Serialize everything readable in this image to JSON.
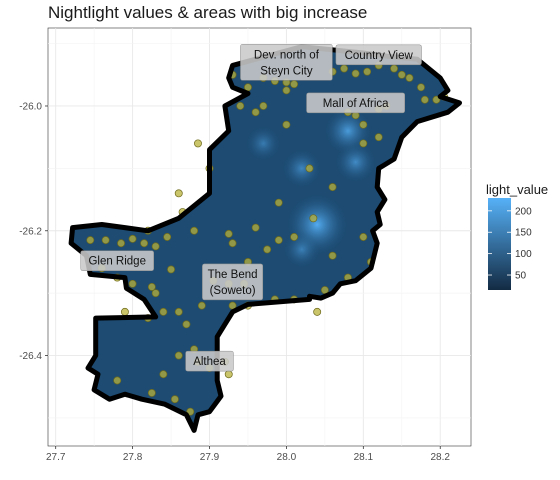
{
  "chart_data": {
    "type": "map",
    "title": "Nightlight values & areas with big increase",
    "xlabel": "",
    "ylabel": "",
    "xlim": [
      27.69,
      28.24
    ],
    "ylim": [
      -26.545,
      -25.875
    ],
    "x_ticks": [
      27.7,
      27.8,
      27.9,
      28.0,
      28.1,
      28.2
    ],
    "y_ticks": [
      -26.0,
      -26.2,
      -26.4
    ],
    "x_tick_labels": [
      "27.7",
      "27.8",
      "27.9",
      "28.0",
      "28.1",
      "28.2"
    ],
    "y_tick_labels": [
      "-26.0",
      "-26.2",
      "-26.4"
    ],
    "grid": true,
    "fill_scale": {
      "name": "light_value",
      "breaks": [
        50,
        100,
        150,
        200
      ],
      "break_labels": [
        "50",
        "100",
        "150",
        "200"
      ],
      "range": [
        15,
        230
      ],
      "low_color": "#132B43",
      "high_color": "#56B1F7"
    },
    "boundary": [
      [
        27.88,
        -26.52
      ],
      [
        27.87,
        -26.495
      ],
      [
        27.842,
        -26.478
      ],
      [
        27.812,
        -26.47
      ],
      [
        27.79,
        -26.462
      ],
      [
        27.77,
        -26.47
      ],
      [
        27.75,
        -26.455
      ],
      [
        27.755,
        -26.43
      ],
      [
        27.742,
        -26.42
      ],
      [
        27.752,
        -26.4
      ],
      [
        27.752,
        -26.34
      ],
      [
        27.83,
        -26.338
      ],
      [
        27.815,
        -26.31
      ],
      [
        27.792,
        -26.292
      ],
      [
        27.79,
        -26.275
      ],
      [
        27.745,
        -26.27
      ],
      [
        27.74,
        -26.24
      ],
      [
        27.72,
        -26.22
      ],
      [
        27.722,
        -26.195
      ],
      [
        27.76,
        -26.19
      ],
      [
        27.82,
        -26.2
      ],
      [
        27.86,
        -26.18
      ],
      [
        27.88,
        -26.16
      ],
      [
        27.9,
        -26.14
      ],
      [
        27.9,
        -26.1
      ],
      [
        27.9,
        -26.07
      ],
      [
        27.925,
        -26.04
      ],
      [
        27.92,
        -26.0
      ],
      [
        27.95,
        -25.98
      ],
      [
        27.93,
        -25.97
      ],
      [
        27.925,
        -25.955
      ],
      [
        27.93,
        -25.935
      ],
      [
        27.975,
        -25.92
      ],
      [
        28.02,
        -25.905
      ],
      [
        28.06,
        -25.91
      ],
      [
        28.1,
        -25.915
      ],
      [
        28.13,
        -25.92
      ],
      [
        28.17,
        -25.925
      ],
      [
        28.185,
        -25.94
      ],
      [
        28.2,
        -25.955
      ],
      [
        28.21,
        -25.975
      ],
      [
        28.2,
        -25.985
      ],
      [
        28.225,
        -25.995
      ],
      [
        28.21,
        -26.01
      ],
      [
        28.17,
        -26.025
      ],
      [
        28.15,
        -26.05
      ],
      [
        28.14,
        -26.085
      ],
      [
        28.12,
        -26.1
      ],
      [
        28.118,
        -26.13
      ],
      [
        28.128,
        -26.15
      ],
      [
        28.118,
        -26.17
      ],
      [
        28.122,
        -26.19
      ],
      [
        28.112,
        -26.2
      ],
      [
        28.118,
        -26.22
      ],
      [
        28.11,
        -26.26
      ],
      [
        28.09,
        -26.28
      ],
      [
        28.07,
        -26.285
      ],
      [
        28.06,
        -26.3
      ],
      [
        28.045,
        -26.308
      ],
      [
        28.03,
        -26.305
      ],
      [
        28.03,
        -26.31
      ],
      [
        27.95,
        -26.318
      ],
      [
        27.93,
        -26.33
      ],
      [
        27.92,
        -26.35
      ],
      [
        27.91,
        -26.37
      ],
      [
        27.91,
        -26.42
      ],
      [
        27.91,
        -26.44
      ],
      [
        27.915,
        -26.465
      ],
      [
        27.9,
        -26.49
      ],
      [
        27.885,
        -26.495
      ]
    ],
    "bright_spots": [
      {
        "x": 28.04,
        "y": -26.19,
        "value": 220
      },
      {
        "x": 28.08,
        "y": -26.04,
        "value": 150
      },
      {
        "x": 28.09,
        "y": -26.09,
        "value": 120
      },
      {
        "x": 28.02,
        "y": -26.1,
        "value": 110
      },
      {
        "x": 28.02,
        "y": -26.23,
        "value": 100
      },
      {
        "x": 27.97,
        "y": -26.06,
        "value": 90
      }
    ],
    "increase_points": [
      [
        27.93,
        -25.95
      ],
      [
        27.95,
        -25.97
      ],
      [
        27.94,
        -26.0
      ],
      [
        27.97,
        -25.955
      ],
      [
        27.985,
        -25.96
      ],
      [
        28.0,
        -25.962
      ],
      [
        28.01,
        -25.965
      ],
      [
        28.0,
        -25.975
      ],
      [
        28.06,
        -25.945
      ],
      [
        28.075,
        -25.94
      ],
      [
        28.09,
        -25.948
      ],
      [
        28.105,
        -25.945
      ],
      [
        28.12,
        -25.935
      ],
      [
        28.14,
        -25.94
      ],
      [
        28.15,
        -25.95
      ],
      [
        28.16,
        -25.955
      ],
      [
        28.175,
        -25.97
      ],
      [
        28.18,
        -25.99
      ],
      [
        28.195,
        -25.99
      ],
      [
        28.205,
        -25.985
      ],
      [
        28.13,
        -26.0
      ],
      [
        28.12,
        -26.005
      ],
      [
        28.08,
        -26.01
      ],
      [
        28.09,
        -26.015
      ],
      [
        28.1,
        -26.03
      ],
      [
        27.96,
        -26.01
      ],
      [
        27.97,
        -26.0
      ],
      [
        28.0,
        -26.03
      ],
      [
        28.1,
        -26.06
      ],
      [
        28.12,
        -26.05
      ],
      [
        27.885,
        -26.06
      ],
      [
        27.9,
        -26.1
      ],
      [
        27.86,
        -26.14
      ],
      [
        27.865,
        -26.17
      ],
      [
        27.82,
        -26.2
      ],
      [
        27.745,
        -26.215
      ],
      [
        27.765,
        -26.215
      ],
      [
        27.785,
        -26.22
      ],
      [
        27.8,
        -26.213
      ],
      [
        27.815,
        -26.22
      ],
      [
        27.83,
        -26.225
      ],
      [
        27.845,
        -26.21
      ],
      [
        27.88,
        -26.2
      ],
      [
        27.925,
        -26.205
      ],
      [
        27.93,
        -26.22
      ],
      [
        27.96,
        -26.195
      ],
      [
        27.975,
        -26.23
      ],
      [
        27.95,
        -26.25
      ],
      [
        28.1,
        -26.21
      ],
      [
        28.11,
        -26.25
      ],
      [
        28.08,
        -26.275
      ],
      [
        28.06,
        -26.24
      ],
      [
        27.76,
        -26.26
      ],
      [
        27.78,
        -26.275
      ],
      [
        27.8,
        -26.285
      ],
      [
        27.825,
        -26.29
      ],
      [
        27.85,
        -26.262
      ],
      [
        27.905,
        -26.28
      ],
      [
        27.925,
        -26.285
      ],
      [
        27.945,
        -26.285
      ],
      [
        27.93,
        -26.32
      ],
      [
        27.95,
        -26.32
      ],
      [
        27.985,
        -26.31
      ],
      [
        28.01,
        -26.31
      ],
      [
        27.83,
        -26.3
      ],
      [
        27.79,
        -26.33
      ],
      [
        27.82,
        -26.34
      ],
      [
        27.84,
        -26.33
      ],
      [
        27.86,
        -26.33
      ],
      [
        27.88,
        -26.39
      ],
      [
        27.86,
        -26.4
      ],
      [
        27.885,
        -26.41
      ],
      [
        27.9,
        -26.42
      ],
      [
        27.92,
        -26.41
      ],
      [
        27.925,
        -26.43
      ],
      [
        27.84,
        -26.43
      ],
      [
        27.825,
        -26.46
      ],
      [
        27.855,
        -26.47
      ],
      [
        27.875,
        -26.49
      ],
      [
        27.78,
        -26.44
      ],
      [
        28.04,
        -26.33
      ],
      [
        28.05,
        -26.295
      ],
      [
        28.01,
        -26.21
      ],
      [
        28.035,
        -26.18
      ],
      [
        28.06,
        -26.13
      ],
      [
        28.03,
        -26.1
      ],
      [
        27.99,
        -26.155
      ],
      [
        27.99,
        -26.215
      ],
      [
        27.87,
        -26.35
      ],
      [
        27.89,
        -26.32
      ]
    ],
    "annotations": [
      {
        "lines": [
          "Dev. north of",
          "Steyn City"
        ],
        "x": 28.0,
        "y": -25.93
      },
      {
        "lines": [
          "Country View"
        ],
        "x": 28.12,
        "y": -25.918
      },
      {
        "lines": [
          "Mall of Africa"
        ],
        "x": 28.09,
        "y": -25.995
      },
      {
        "lines": [
          "Glen Ridge"
        ],
        "x": 27.78,
        "y": -26.248
      },
      {
        "lines": [
          "The Bend",
          "(Soweto)"
        ],
        "x": 27.93,
        "y": -26.282
      },
      {
        "lines": [
          "Althea"
        ],
        "x": 27.9,
        "y": -26.409
      }
    ]
  }
}
